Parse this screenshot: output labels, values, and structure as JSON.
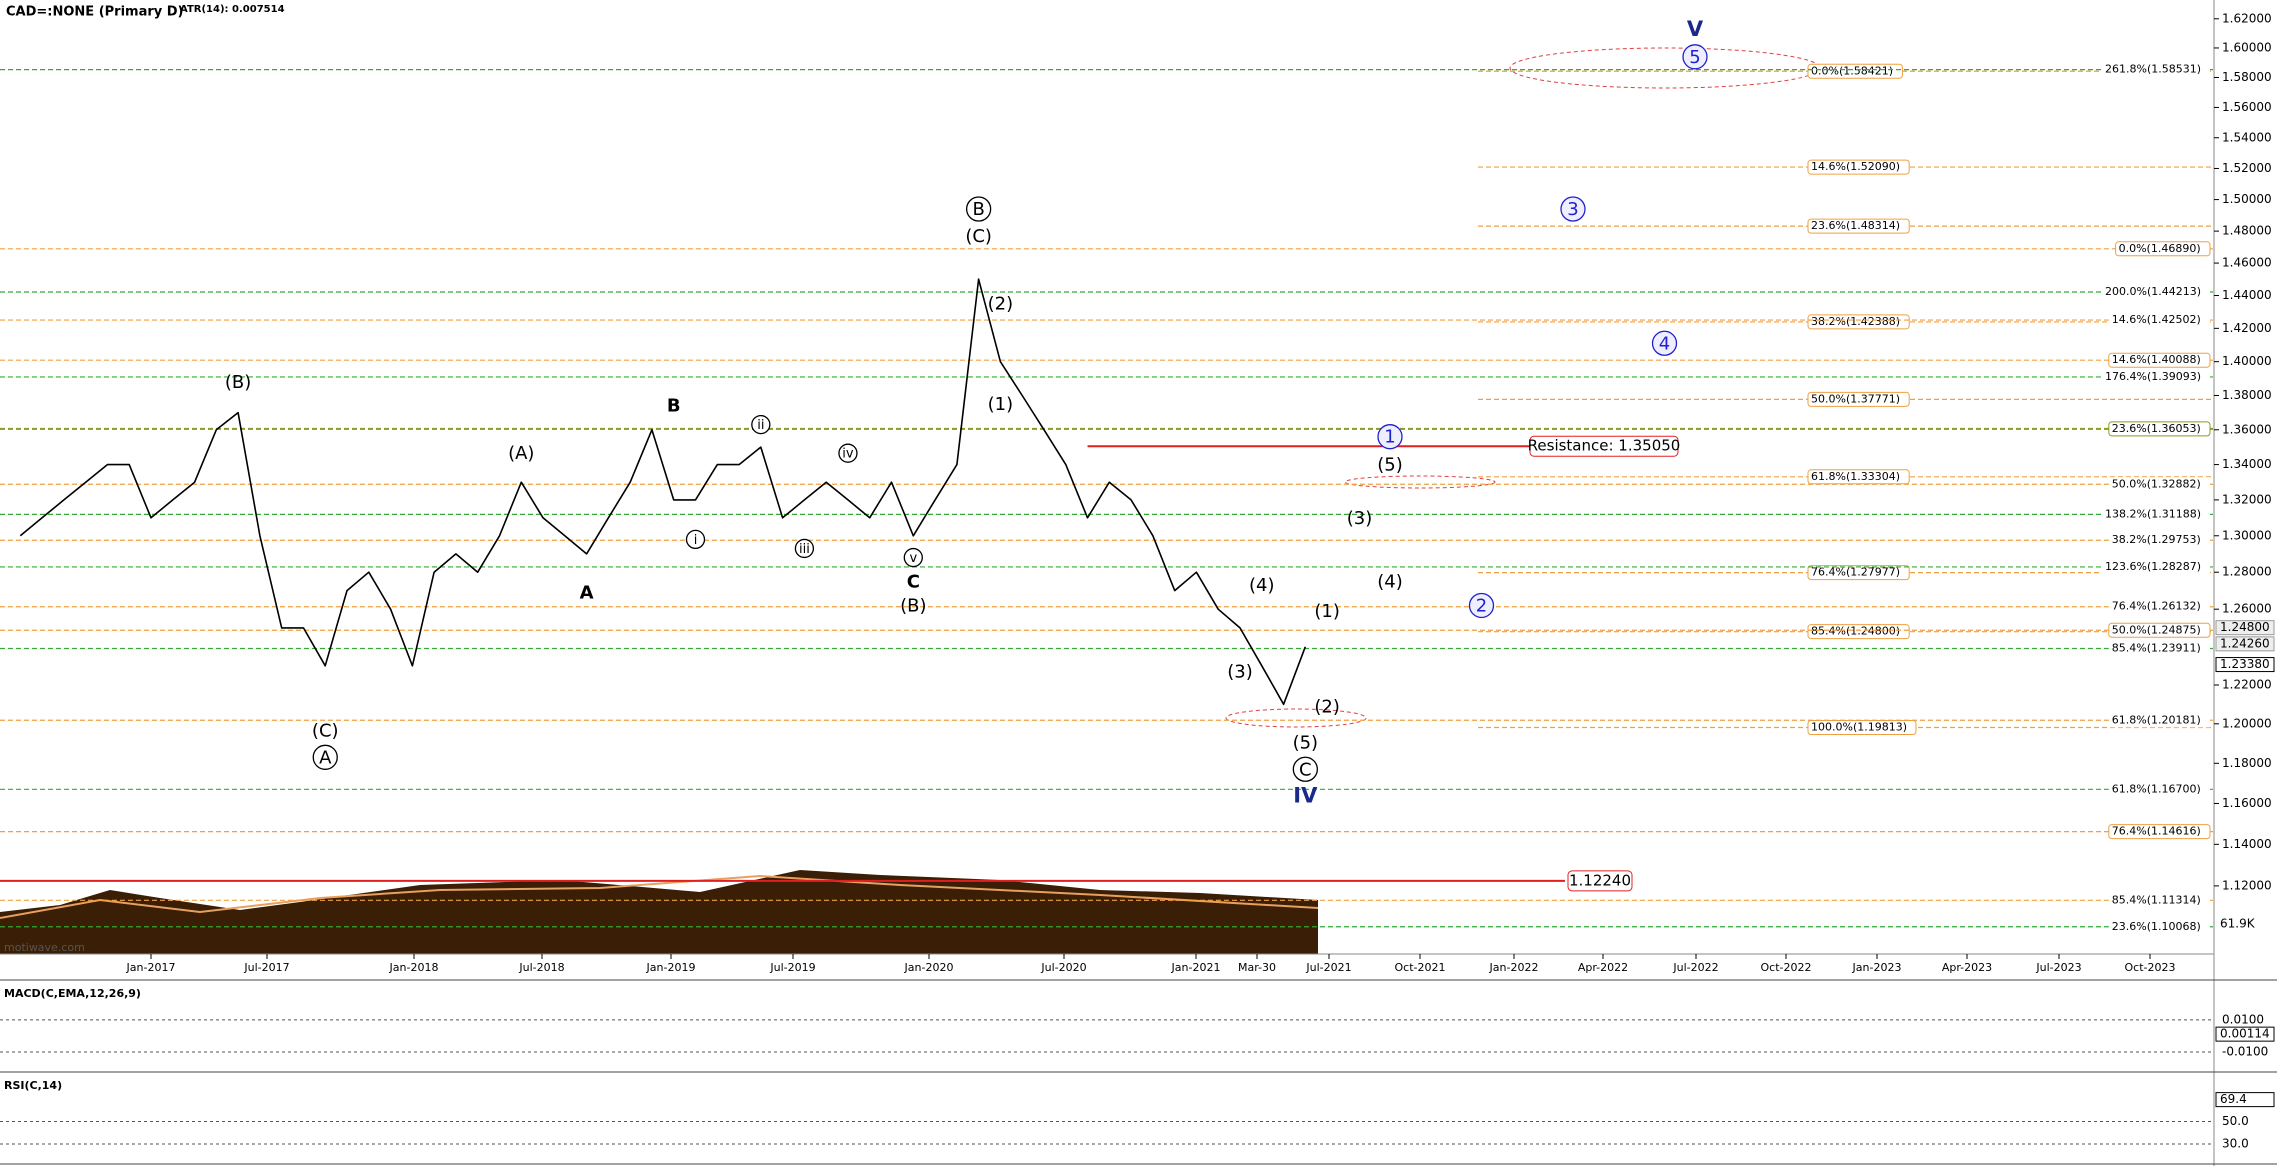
{
  "chart_data": {
    "type": "line",
    "title": "CAD=:NONE (Primary D)",
    "subtitle": "ATR(14): 0.007514",
    "watermark": "motiwave.com",
    "log": true,
    "color": "#000000",
    "x": [
      "2016-07",
      "2016-08",
      "2016-09",
      "2016-10",
      "2016-11",
      "2016-12",
      "2017-01",
      "2017-02",
      "2017-03",
      "2017-04",
      "2017-05",
      "2017-06",
      "2017-07",
      "2017-08",
      "2017-09",
      "2017-10",
      "2017-11",
      "2017-12",
      "2018-01",
      "2018-02",
      "2018-03",
      "2018-04",
      "2018-05",
      "2018-06",
      "2018-07",
      "2018-08",
      "2018-09",
      "2018-10",
      "2018-11",
      "2018-12",
      "2019-01",
      "2019-02",
      "2019-03",
      "2019-04",
      "2019-05",
      "2019-06",
      "2019-07",
      "2019-08",
      "2019-09",
      "2019-10",
      "2019-11",
      "2019-12",
      "2020-01",
      "2020-02",
      "2020-03",
      "2020-04",
      "2020-05",
      "2020-06",
      "2020-07",
      "2020-08",
      "2020-09",
      "2020-10",
      "2020-11",
      "2020-12",
      "2021-01",
      "2021-02",
      "2021-03",
      "2021-04",
      "2021-05",
      "2021-06"
    ],
    "values": [
      1.3,
      1.31,
      1.32,
      1.33,
      1.34,
      1.34,
      1.31,
      1.32,
      1.33,
      1.36,
      1.37,
      1.3,
      1.25,
      1.25,
      1.23,
      1.27,
      1.28,
      1.26,
      1.23,
      1.28,
      1.29,
      1.28,
      1.3,
      1.33,
      1.31,
      1.3,
      1.29,
      1.31,
      1.33,
      1.36,
      1.32,
      1.32,
      1.34,
      1.34,
      1.35,
      1.31,
      1.32,
      1.33,
      1.32,
      1.31,
      1.33,
      1.3,
      1.32,
      1.34,
      1.45,
      1.4,
      1.38,
      1.36,
      1.34,
      1.31,
      1.33,
      1.32,
      1.3,
      1.27,
      1.28,
      1.26,
      1.25,
      1.23,
      1.21,
      1.24
    ],
    "ylim": [
      1.088,
      1.633
    ],
    "yticks": [
      {
        "value": 1.62,
        "label": "1.62000"
      },
      {
        "value": 1.6,
        "label": "1.60000"
      },
      {
        "value": 1.58,
        "label": "1.58000"
      },
      {
        "value": 1.56,
        "label": "1.56000"
      },
      {
        "value": 1.54,
        "label": "1.54000"
      },
      {
        "value": 1.52,
        "label": "1.52000"
      },
      {
        "value": 1.5,
        "label": "1.50000"
      },
      {
        "value": 1.48,
        "label": "1.48000"
      },
      {
        "value": 1.46,
        "label": "1.46000"
      },
      {
        "value": 1.44,
        "label": "1.44000"
      },
      {
        "value": 1.42,
        "label": "1.42000"
      },
      {
        "value": 1.4,
        "label": "1.40000"
      },
      {
        "value": 1.38,
        "label": "1.38000"
      },
      {
        "value": 1.36,
        "label": "1.36000"
      },
      {
        "value": 1.34,
        "label": "1.34000"
      },
      {
        "value": 1.32,
        "label": "1.32000"
      },
      {
        "value": 1.3,
        "label": "1.30000"
      },
      {
        "value": 1.28,
        "label": "1.28000"
      },
      {
        "value": 1.26,
        "label": "1.26000"
      },
      {
        "value": 1.22,
        "label": "1.22000"
      },
      {
        "value": 1.2,
        "label": "1.20000"
      },
      {
        "value": 1.18,
        "label": "1.18000"
      },
      {
        "value": 1.16,
        "label": "1.16000"
      },
      {
        "value": 1.14,
        "label": "1.14000"
      },
      {
        "value": 1.12,
        "label": "1.12000"
      }
    ],
    "xticks": [
      "Jan-2017",
      "Jul-2017",
      "Jan-2018",
      "Jul-2018",
      "Jan-2019",
      "Jul-2019",
      "Jan-2020",
      "Jul-2020",
      "Jan-2021",
      "Mar-30",
      "Jul-2021",
      "Oct-2021",
      "Jan-2022",
      "Apr-2022",
      "Jul-2022",
      "Oct-2022",
      "Jan-2023",
      "Apr-2023",
      "Jul-2023",
      "Oct-2023"
    ],
    "annotations": [
      {
        "text": "(B)",
        "x": "2017-05",
        "y": 1.388,
        "style": "plain"
      },
      {
        "text": "(C)",
        "x": "2017-09",
        "y": 1.1965,
        "style": "plain"
      },
      {
        "text": "A",
        "x": "2017-09",
        "y": 1.183,
        "style": "circle"
      },
      {
        "text": "(A)",
        "x": "2018-06",
        "y": 1.3465,
        "style": "plain"
      },
      {
        "text": "A",
        "x": "2018-09",
        "y": 1.269,
        "style": "bold"
      },
      {
        "text": "B",
        "x": "2019-01",
        "y": 1.374,
        "style": "bold"
      },
      {
        "text": "i",
        "x": "2019-02",
        "y": 1.298,
        "style": "small-circle"
      },
      {
        "text": "ii",
        "x": "2019-05",
        "y": 1.363,
        "style": "small-circle"
      },
      {
        "text": "iii",
        "x": "2019-07",
        "y": 1.293,
        "style": "small-circle"
      },
      {
        "text": "iv",
        "x": "2019-09",
        "y": 1.3465,
        "style": "small-circle"
      },
      {
        "text": "v",
        "x": "2019-12",
        "y": 1.288,
        "style": "small-circle"
      },
      {
        "text": "C",
        "x": "2019-12",
        "y": 1.275,
        "style": "bold"
      },
      {
        "text": "(B)",
        "x": "2019-12",
        "y": 1.262,
        "style": "plain"
      },
      {
        "text": "B",
        "x": "2020-03",
        "y": 1.494,
        "style": "circle"
      },
      {
        "text": "(C)",
        "x": "2020-03",
        "y": 1.477,
        "style": "plain"
      },
      {
        "text": "(2)",
        "x": "2020-04",
        "y": 1.435,
        "style": "plain"
      },
      {
        "text": "(1)",
        "x": "2020-04",
        "y": 1.375,
        "style": "plain"
      },
      {
        "text": "(4)",
        "x": "2021-04",
        "y": 1.273,
        "style": "plain"
      },
      {
        "text": "(3)",
        "x": "2021-03",
        "y": 1.227,
        "style": "plain"
      },
      {
        "text": "(5)",
        "x": "2021-06",
        "y": 1.1905,
        "style": "plain"
      },
      {
        "text": "C",
        "x": "2021-06",
        "y": 1.177,
        "style": "circle"
      },
      {
        "text": "IV",
        "x": "2021-06",
        "y": 1.164,
        "style": "navy"
      },
      {
        "text": "(1)",
        "x": "2021-07",
        "y": 1.259,
        "style": "plain"
      },
      {
        "text": "(2)",
        "x": "2021-07",
        "y": 1.209,
        "style": "plain"
      },
      {
        "text": "(3)",
        "x": "2021-08",
        "y": 1.31,
        "style": "plain"
      },
      {
        "text": "(4)",
        "x": "2021-09",
        "y": 1.275,
        "style": "plain"
      },
      {
        "text": "(5)",
        "x": "2021-09",
        "y": 1.34,
        "style": "plain"
      },
      {
        "text": "1",
        "x": "2021-09",
        "y": 1.356,
        "style": "blue-circle"
      },
      {
        "text": "2",
        "x": "2021-12",
        "y": 1.262,
        "style": "blue-circle"
      },
      {
        "text": "3",
        "x": "2022-03",
        "y": 1.494,
        "style": "blue-circle"
      },
      {
        "text": "4",
        "x": "2022-06",
        "y": 1.411,
        "style": "blue-circle"
      },
      {
        "text": "5",
        "x": "2022-07",
        "y": 1.594,
        "style": "blue-circle"
      },
      {
        "text": "V",
        "x": "2022-07",
        "y": 1.613,
        "style": "navy"
      }
    ],
    "fib_levels": [
      {
        "label": "0.0%(1.58421)",
        "value": 1.58421,
        "color": "#f0a040",
        "boxed": true,
        "column": "a"
      },
      {
        "label": "14.6%(1.52090)",
        "value": 1.5209,
        "color": "#f0a040",
        "boxed": true,
        "column": "a"
      },
      {
        "label": "23.6%(1.48314)",
        "value": 1.48314,
        "color": "#f0a040",
        "boxed": true,
        "column": "a"
      },
      {
        "label": "38.2%(1.42388)",
        "value": 1.42388,
        "color": "#f0a040",
        "boxed": true,
        "column": "a"
      },
      {
        "label": "50.0%(1.37771)",
        "value": 1.37771,
        "color": "#f0a040",
        "boxed": true,
        "column": "a"
      },
      {
        "label": "61.8%(1.33304)",
        "value": 1.33304,
        "color": "#f0a040",
        "boxed": true,
        "column": "a"
      },
      {
        "label": "76.4%(1.27977)",
        "value": 1.27977,
        "color": "#f0a040",
        "boxed": true,
        "column": "a"
      },
      {
        "label": "85.4%(1.24800)",
        "value": 1.248,
        "color": "#f0a040",
        "boxed": true,
        "column": "a"
      },
      {
        "label": "100.0%(1.19813)",
        "value": 1.19813,
        "color": "#f0a040",
        "boxed": true,
        "column": "a"
      },
      {
        "label": "261.8%(1.58531)",
        "value": 1.58531,
        "color": "#33aa33",
        "boxed": false,
        "column": "b"
      },
      {
        "label": "0.0%(1.46890)",
        "value": 1.4689,
        "color": "#f0a040",
        "boxed": true,
        "column": "b"
      },
      {
        "label": "200.0%(1.44213)",
        "value": 1.44213,
        "color": "#33aa33",
        "boxed": false,
        "column": "b"
      },
      {
        "label": "14.6%(1.42502)",
        "value": 1.42502,
        "color": "#f0a040",
        "boxed": false,
        "column": "b"
      },
      {
        "label": "14.6%(1.40088)",
        "value": 1.40088,
        "color": "#f0a040",
        "boxed": true,
        "column": "b"
      },
      {
        "label": "176.4%(1.39093)",
        "value": 1.39093,
        "color": "#33aa33",
        "boxed": false,
        "column": "b"
      },
      {
        "label": "23.6%(1.36053)",
        "value": 1.36053,
        "color": "#8a9a20",
        "boxed": true,
        "column": "b"
      },
      {
        "label": "50.0%(1.32882)",
        "value": 1.32882,
        "color": "#f0a040",
        "boxed": false,
        "column": "b"
      },
      {
        "label": "138.2%(1.31188)",
        "value": 1.31188,
        "color": "#33aa33",
        "boxed": false,
        "column": "b"
      },
      {
        "label": "38.2%(1.29753)",
        "value": 1.29753,
        "color": "#f0a040",
        "boxed": false,
        "column": "b"
      },
      {
        "label": "123.6%(1.28287)",
        "value": 1.28287,
        "color": "#33aa33",
        "boxed": false,
        "column": "b"
      },
      {
        "label": "76.4%(1.26132)",
        "value": 1.26132,
        "color": "#f0a040",
        "boxed": false,
        "column": "b"
      },
      {
        "label": "50.0%(1.24875)",
        "value": 1.24875,
        "color": "#f0a040",
        "boxed": true,
        "column": "b"
      },
      {
        "label": "85.4%(1.23911)",
        "value": 1.23911,
        "color": "#33aa33",
        "boxed": false,
        "column": "b"
      },
      {
        "label": "61.8%(1.20181)",
        "value": 1.20181,
        "color": "#f0a040",
        "boxed": false,
        "column": "b"
      },
      {
        "label": "61.8%(1.16700)",
        "value": 1.167,
        "color": "#33aa33",
        "boxed": false,
        "column": "b"
      },
      {
        "label": "76.4%(1.14616)",
        "value": 1.14616,
        "color": "#f0a040",
        "boxed": true,
        "column": "b"
      },
      {
        "label": "85.4%(1.11314)",
        "value": 1.11314,
        "color": "#f0a040",
        "boxed": false,
        "column": "b"
      },
      {
        "label": "23.6%(1.10068)",
        "value": 1.10068,
        "color": "#33aa33",
        "boxed": false,
        "column": "b"
      }
    ],
    "resistance": {
      "label": "Resistance: 1.35050",
      "value": 1.3505,
      "start": "2020-08",
      "color": "#e02020"
    },
    "support": {
      "label": "1.12240",
      "value": 1.1224,
      "color": "#e02020"
    },
    "price_labels": [
      {
        "value": 1.248,
        "label": "1.24800"
      },
      {
        "value": 1.2426,
        "label": "1.24260"
      },
      {
        "value": 1.2338,
        "label": "1.23380"
      }
    ],
    "volume_label": "61.9K",
    "panels": [
      {
        "title": "MACD(C,EMA,12,26,9)",
        "ylim": [
          -0.0224,
          0.0348
        ],
        "yticks": [
          {
            "value": 0.01,
            "label": "0.0100"
          },
          {
            "value": -0.01,
            "label": "-0.0100"
          }
        ],
        "last": {
          "value": 0.00114,
          "label": "0.00114"
        }
      },
      {
        "title": "RSI(C,14)",
        "ylim": [
          12.3,
          93.9
        ],
        "yticks": [
          {
            "value": 50,
            "label": "50.0"
          },
          {
            "value": 30,
            "label": "30.0"
          }
        ],
        "last": {
          "value": 69.4,
          "label": "69.4"
        }
      }
    ]
  }
}
